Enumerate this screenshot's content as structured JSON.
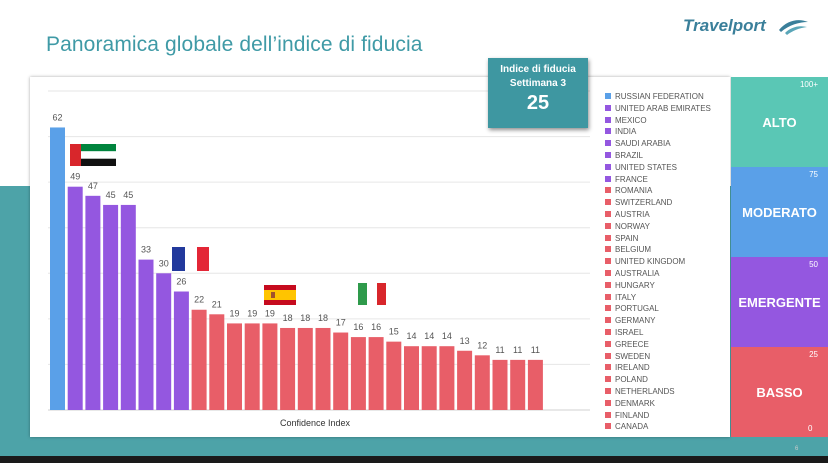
{
  "title": "Panoramica globale dell’indice di fiducia",
  "logo": {
    "text": "Travelport",
    "mark": "swoosh-icon"
  },
  "callout": {
    "line1": "Indice di fiducia",
    "line2": "Settimana 3",
    "value": "25"
  },
  "chart_data": {
    "type": "bar",
    "categories": [
      "RUSSIAN FEDERATION",
      "UNITED ARAB EMIRATES",
      "MEXICO",
      "INDIA",
      "SAUDI ARABIA",
      "BRAZIL",
      "UNITED STATES",
      "FRANCE",
      "ROMANIA",
      "SWITZERLAND",
      "AUSTRIA",
      "NORWAY",
      "SPAIN",
      "BELGIUM",
      "UNITED KINGDOM",
      "AUSTRALIA",
      "HUNGARY",
      "ITALY",
      "PORTUGAL",
      "GERMANY",
      "ISRAEL",
      "GREECE",
      "SWEDEN",
      "IRELAND",
      "POLAND",
      "NETHERLANDS",
      "DENMARK",
      "FINLAND",
      "CANADA"
    ],
    "values": [
      62,
      49,
      47,
      45,
      45,
      33,
      30,
      26,
      22,
      21,
      19,
      19,
      19,
      18,
      18,
      18,
      17,
      16,
      16,
      15,
      14,
      14,
      14,
      13,
      12,
      11,
      11,
      11,
      null
    ],
    "value_labels": [
      "62",
      "49",
      "47",
      "45",
      "45",
      "33",
      "30",
      "26",
      "22",
      "21",
      "19",
      "19",
      "19",
      "18",
      "18",
      "18",
      "17",
      "16",
      "16",
      "15",
      "14",
      "14",
      "14",
      "13",
      "12",
      "11",
      "11",
      "11",
      ""
    ],
    "color_groups": [
      "blue",
      "purple",
      "purple",
      "purple",
      "purple",
      "purple",
      "purple",
      "purple",
      "red",
      "red",
      "red",
      "red",
      "red",
      "red",
      "red",
      "red",
      "red",
      "red",
      "red",
      "red",
      "red",
      "red",
      "red",
      "red",
      "red",
      "red",
      "red",
      "red",
      "red"
    ],
    "colors": {
      "blue": "#5aa0e8",
      "purple": "#9457e0",
      "red": "#e85e68"
    },
    "xlabel": "Confidence Index",
    "ylim": [
      0,
      70
    ],
    "grid": true,
    "legend_position": "right"
  },
  "scale": {
    "bands": [
      {
        "label": "ALTO",
        "color": "#5ac7b5",
        "top_tick": "100+"
      },
      {
        "label": "MODERATO",
        "color": "#5aa0e8",
        "top_tick": "75"
      },
      {
        "label": "EMERGENTE",
        "color": "#9457e0",
        "top_tick": "50"
      },
      {
        "label": "BASSO",
        "color": "#e85e68",
        "top_tick": "25"
      }
    ],
    "bottom_tick": "0"
  },
  "flags": [
    {
      "name": "uae-flag-icon",
      "colors": [
        "#d8262b",
        "#00843d",
        "#ffffff",
        "#111111"
      ]
    },
    {
      "name": "france-flag-icon",
      "colors": [
        "#22399c",
        "#ffffff",
        "#e32636"
      ]
    },
    {
      "name": "spain-flag-icon",
      "colors": [
        "#c60b1e",
        "#ffc400"
      ]
    },
    {
      "name": "italy-flag-icon",
      "colors": [
        "#2e9a4b",
        "#ffffff",
        "#d8262b"
      ]
    }
  ],
  "page_number": "6"
}
